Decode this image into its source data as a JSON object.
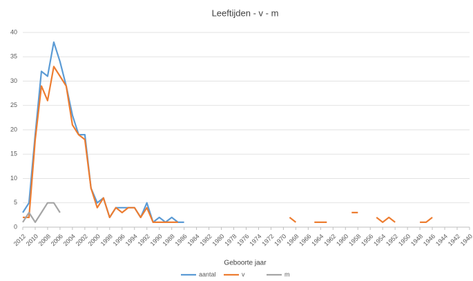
{
  "chart_data": {
    "type": "line",
    "title": "Leeftijden - v - m",
    "x_label": "Geboorte jaar",
    "x": [
      2012,
      2011,
      2010,
      2009,
      2008,
      2007,
      2006,
      2005,
      2004,
      2003,
      2002,
      2001,
      2000,
      1999,
      1998,
      1997,
      1996,
      1995,
      1994,
      1993,
      1992,
      1991,
      1990,
      1989,
      1988,
      1987,
      1986,
      1985,
      1984,
      1983,
      1982,
      1981,
      1980,
      1979,
      1978,
      1977,
      1976,
      1975,
      1974,
      1973,
      1972,
      1971,
      1970,
      1969,
      1968,
      1967,
      1966,
      1965,
      1964,
      1963,
      1962,
      1961,
      1960,
      1959,
      1958,
      1957,
      1956,
      1955,
      1954,
      1953,
      1952,
      1951,
      1950,
      1949,
      1948,
      1947,
      1946,
      1945,
      1944,
      1943,
      1942,
      1941,
      1940
    ],
    "xlim": [
      2012,
      1940
    ],
    "xticks": [
      2012,
      2010,
      2008,
      2006,
      2004,
      2002,
      2000,
      1998,
      1996,
      1994,
      1992,
      1990,
      1988,
      1986,
      1984,
      1982,
      1980,
      1978,
      1976,
      1974,
      1972,
      1970,
      1968,
      1966,
      1964,
      1962,
      1960,
      1958,
      1956,
      1954,
      1952,
      1950,
      1948,
      1946,
      1944,
      1942,
      1940
    ],
    "ylim": [
      0,
      40
    ],
    "yticks": [
      0,
      5,
      10,
      15,
      20,
      25,
      30,
      35,
      40
    ],
    "grid": true,
    "legend": "bottom",
    "series": [
      {
        "name": "aantal",
        "color": "#5b9bd5",
        "values": [
          3,
          5,
          19,
          32,
          31,
          38,
          34,
          29,
          23,
          19,
          19,
          8,
          5,
          6,
          2,
          4,
          4,
          4,
          4,
          2,
          5,
          1,
          2,
          1,
          2,
          1,
          1,
          null,
          null,
          null,
          null,
          null,
          null,
          null,
          null,
          null,
          null,
          null,
          null,
          null,
          null,
          null,
          null,
          null,
          null,
          null,
          null,
          null,
          null,
          null,
          null,
          null,
          null,
          null,
          null,
          null,
          null,
          null,
          null,
          null,
          null,
          null,
          null,
          null,
          null,
          null,
          null,
          null,
          null,
          null,
          null,
          null,
          null
        ]
      },
      {
        "name": "v",
        "color": "#ed7d31",
        "values": [
          2,
          2,
          18,
          29,
          26,
          33,
          31,
          29,
          21,
          19,
          18,
          8,
          4,
          6,
          2,
          4,
          3,
          4,
          4,
          2,
          4,
          1,
          1,
          1,
          1,
          1,
          null,
          null,
          null,
          null,
          null,
          null,
          null,
          null,
          null,
          null,
          null,
          null,
          null,
          null,
          null,
          null,
          null,
          2,
          1,
          null,
          null,
          1,
          1,
          1,
          null,
          null,
          null,
          3,
          3,
          null,
          null,
          2,
          1,
          2,
          1,
          null,
          null,
          null,
          1,
          1,
          2,
          null,
          null,
          null,
          null,
          null,
          null
        ]
      },
      {
        "name": "m",
        "color": "#a5a5a5",
        "values": [
          1,
          3,
          1,
          3,
          5,
          5,
          3,
          null,
          null,
          null,
          null,
          null,
          null,
          null,
          null,
          null,
          null,
          null,
          null,
          null,
          null,
          null,
          null,
          null,
          null,
          null,
          null,
          null,
          null,
          null,
          null,
          null,
          null,
          null,
          null,
          null,
          null,
          null,
          null,
          null,
          null,
          null,
          null,
          null,
          null,
          null,
          null,
          null,
          null,
          null,
          null,
          null,
          null,
          null,
          null,
          null,
          null,
          null,
          null,
          null,
          null,
          null,
          null,
          null,
          null,
          null,
          null,
          null,
          null,
          null,
          null,
          null,
          null
        ]
      }
    ]
  }
}
